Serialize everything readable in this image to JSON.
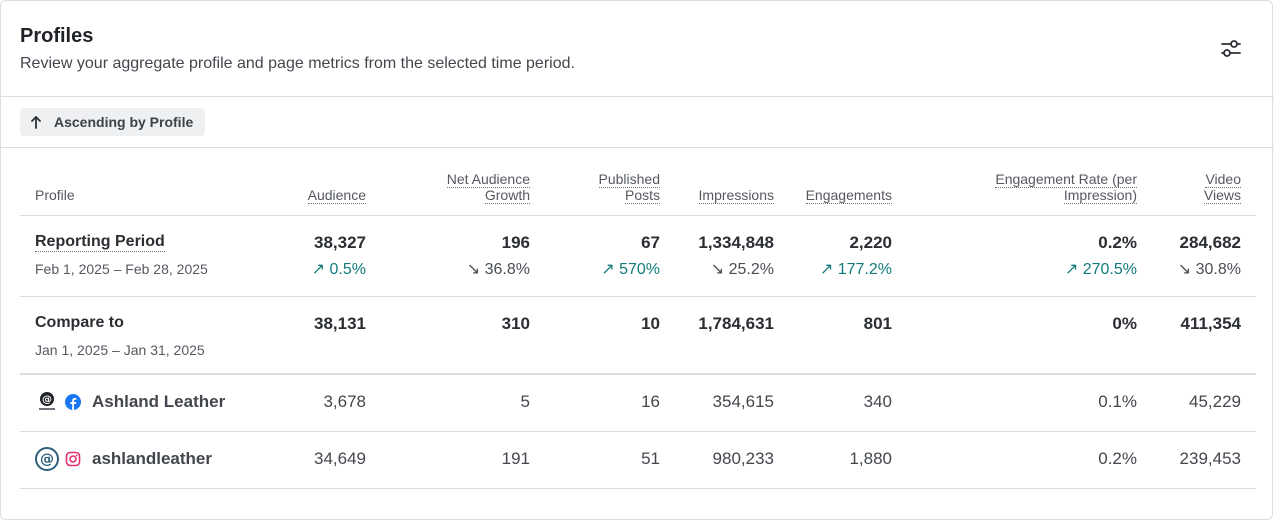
{
  "header": {
    "title": "Profiles",
    "subtitle": "Review your aggregate profile and page metrics from the selected time period."
  },
  "sort": {
    "label": "Ascending by Profile"
  },
  "columns": {
    "profile": "Profile",
    "audience": "Audience",
    "net_growth_1": "Net Audience",
    "net_growth_2": "Growth",
    "published_1": "Published",
    "published_2": "Posts",
    "impressions": "Impressions",
    "engagements": "Engagements",
    "eng_rate_1": "Engagement Rate (per",
    "eng_rate_2": "Impression)",
    "video_1": "Video",
    "video_2": "Views"
  },
  "reporting": {
    "label": "Reporting Period",
    "dates": "Feb 1, 2025 – Feb 28, 2025",
    "values": {
      "audience": "38,327",
      "net_growth": "196",
      "published": "67",
      "impressions": "1,334,848",
      "engagements": "2,220",
      "eng_rate": "0.2%",
      "video": "284,682"
    },
    "deltas": {
      "audience": "↗ 0.5%",
      "net_growth": "↘ 36.8%",
      "published": "↗ 570%",
      "impressions": "↘ 25.2%",
      "engagements": "↗ 177.2%",
      "eng_rate": "↗ 270.5%",
      "video": "↘ 30.8%"
    }
  },
  "compare": {
    "label": "Compare to",
    "dates": "Jan 1, 2025 – Jan 31, 2025",
    "values": {
      "audience": "38,131",
      "net_growth": "310",
      "published": "10",
      "impressions": "1,784,631",
      "engagements": "801",
      "eng_rate": "0%",
      "video": "411,354"
    }
  },
  "profiles": [
    {
      "name": "Ashland Leather",
      "network": "facebook-icon",
      "values": {
        "audience": "3,678",
        "net_growth": "5",
        "published": "16",
        "impressions": "354,615",
        "engagements": "340",
        "eng_rate": "0.1%",
        "video": "45,229"
      }
    },
    {
      "name": "ashlandleather",
      "network": "instagram-icon",
      "values": {
        "audience": "34,649",
        "net_growth": "191",
        "published": "51",
        "impressions": "980,233",
        "engagements": "1,880",
        "eng_rate": "0.2%",
        "video": "239,453"
      }
    }
  ],
  "colors": {
    "up": "#127a7a",
    "down": "#4a4e55",
    "facebook": "#1877f2",
    "instagram": "#e1306c"
  }
}
